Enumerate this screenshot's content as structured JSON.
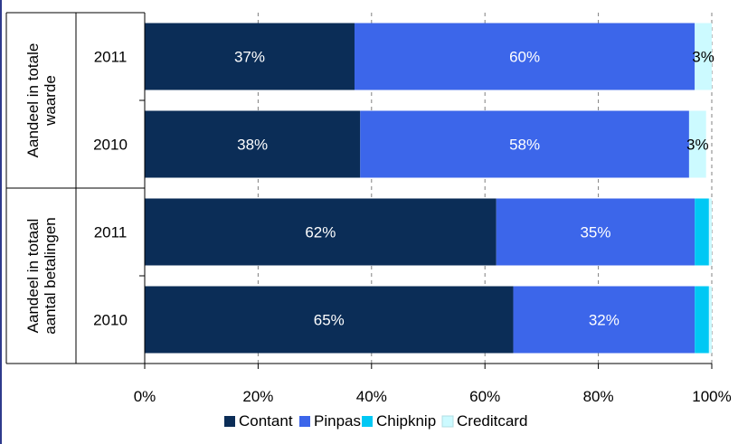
{
  "chart_data": {
    "type": "bar",
    "orientation": "horizontal",
    "stacked": true,
    "groups": [
      {
        "label": "Aandeel in totale waarde",
        "label_lines": [
          "Aandeel in totale",
          "waarde"
        ]
      },
      {
        "label": "Aandeel in totaal aantal betalingen",
        "label_lines": [
          "Aandeel in totaal",
          "aantal betalingen"
        ]
      }
    ],
    "categories": [
      "2011",
      "2010",
      "2011",
      "2010"
    ],
    "category_group": [
      0,
      0,
      1,
      1
    ],
    "series": [
      {
        "name": "Contant",
        "color": "#0b2d57",
        "label_color": "#ffffff",
        "values": [
          37,
          38,
          62,
          65
        ],
        "labels": [
          "37%",
          "38%",
          "62%",
          "65%"
        ]
      },
      {
        "name": "Pinpas",
        "color": "#3c66ea",
        "label_color": "#ffffff",
        "values": [
          60,
          58,
          35,
          32
        ],
        "labels": [
          "60%",
          "58%",
          "35%",
          "32%"
        ]
      },
      {
        "name": "Chipknip",
        "color": "#00c8f4",
        "label_color": "#000000",
        "values": [
          0,
          0,
          2.5,
          2.5
        ],
        "labels": [
          "",
          "",
          "",
          ""
        ]
      },
      {
        "name": "Creditcard",
        "color": "#ccfaff",
        "label_color": "#000000",
        "values": [
          3,
          3,
          0.5,
          0.5
        ],
        "labels": [
          "3%",
          "3%",
          "",
          ""
        ]
      }
    ],
    "x_ticks": [
      "0%",
      "20%",
      "40%",
      "60%",
      "80%",
      "100%"
    ],
    "xlim": [
      0,
      100
    ],
    "grid": "vertical dashed",
    "legend_position": "bottom"
  }
}
